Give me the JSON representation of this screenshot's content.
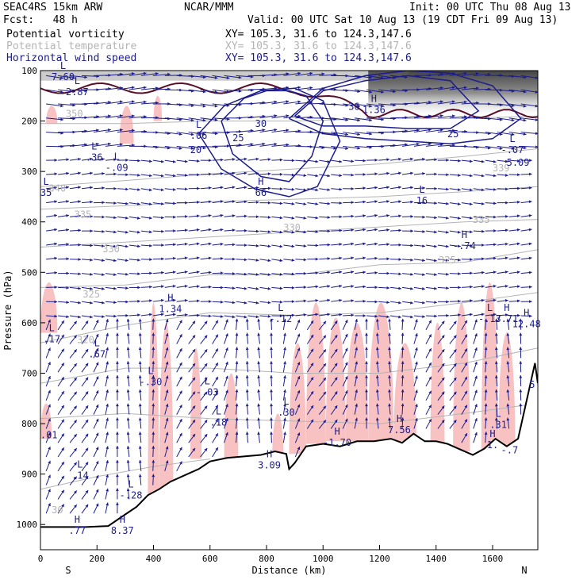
{
  "header": {
    "model": "SEAC4RS 15km ARW",
    "org": "NCAR/MMM",
    "init": "Init: 00 UTC Thu 08 Aug 13",
    "fcst": "Fcst:   48 h",
    "valid": "Valid: 00 UTC Sat 10 Aug 13 (19 CDT Fri 09 Aug 13)"
  },
  "fields": [
    {
      "name": "Potential vorticity",
      "xy": "XY= 105.3, 31.6 to 124.3,147.6",
      "color": "#000000"
    },
    {
      "name": "Potential temperature",
      "xy": "XY= 105.3, 31.6 to 124.3,147.6",
      "color": "#b4b4b4"
    },
    {
      "name": "Horizontal wind speed",
      "xy": "XY= 105.3, 31.6 to 124.3,147.6",
      "color": "#1c1c8c"
    }
  ],
  "chart_data": {
    "type": "cross-section",
    "xlabel": "Distance (km)",
    "ylabel": "Pressure (hPa)",
    "xlim": [
      0,
      1760
    ],
    "ylim": [
      1050,
      100
    ],
    "x_ticks": [
      0,
      200,
      400,
      600,
      800,
      1000,
      1200,
      1400,
      1600
    ],
    "x_tick_labels": [
      "0",
      "200",
      "400",
      "600",
      "800",
      "1000",
      "1200",
      "1400",
      "1600"
    ],
    "y_ticks": [
      100,
      200,
      300,
      400,
      500,
      600,
      700,
      800,
      900,
      1000
    ],
    "y_tick_labels": [
      "100",
      "200",
      "300",
      "400",
      "500",
      "600",
      "700",
      "800",
      "900",
      "1000"
    ],
    "end_labels": {
      "left": "S",
      "right": "N"
    },
    "colors": {
      "pv_fill": "#f9c2c2",
      "pv_contour": "#5a0f28",
      "theta": "#b4b4b4",
      "wind": "#1c1c8c",
      "terrain": "#000000"
    },
    "terrain": {
      "x": [
        0,
        80,
        160,
        240,
        300,
        340,
        380,
        420,
        460,
        500,
        560,
        600,
        660,
        720,
        780,
        830,
        870,
        880,
        900,
        940,
        1000,
        1060,
        1120,
        1180,
        1240,
        1280,
        1320,
        1360,
        1400,
        1440,
        1480,
        1530,
        1570,
        1610,
        1650,
        1690,
        1720,
        1750,
        1760
      ],
      "p": [
        1005,
        1005,
        1005,
        1003,
        980,
        965,
        942,
        930,
        915,
        905,
        890,
        875,
        868,
        865,
        862,
        855,
        860,
        890,
        878,
        845,
        840,
        845,
        835,
        835,
        830,
        838,
        820,
        835,
        835,
        840,
        850,
        862,
        850,
        830,
        845,
        830,
        755,
        680,
        720
      ]
    },
    "theta_contours": [
      {
        "level": 350,
        "x": [
          0,
          300,
          600,
          900,
          1200,
          1500,
          1760
        ],
        "p": [
          205,
          205,
          200,
          200,
          195,
          195,
          190
        ]
      },
      {
        "level": 340,
        "x": [
          0,
          300,
          600,
          900,
          1200,
          1500,
          1760
        ],
        "p": [
          330,
          318,
          305,
          295,
          285,
          270,
          255
        ]
      },
      {
        "level": 335,
        "x": [
          0,
          300,
          600,
          900,
          1200,
          1500,
          1760
        ],
        "p": [
          375,
          368,
          360,
          355,
          350,
          340,
          330
        ]
      },
      {
        "level": 330,
        "x": [
          0,
          300,
          600,
          900,
          1200,
          1500,
          1760
        ],
        "p": [
          450,
          440,
          430,
          420,
          410,
          400,
          395
        ]
      },
      {
        "level": 325,
        "x": [
          0,
          300,
          600,
          900,
          1200,
          1500,
          1760
        ],
        "p": [
          530,
          525,
          505,
          505,
          485,
          480,
          455
        ]
      },
      {
        "level": 320,
        "x": [
          0,
          300,
          600,
          900,
          1200,
          1500,
          1760
        ],
        "p": [
          640,
          605,
          580,
          585,
          580,
          560,
          540
        ]
      },
      {
        "level": 315,
        "x": [
          0,
          300,
          600,
          900,
          1200,
          1500,
          1760
        ],
        "p": [
          720,
          690,
          690,
          700,
          700,
          680,
          650
        ]
      },
      {
        "level": 310,
        "x": [
          0,
          300,
          600,
          900,
          1200,
          1500,
          1760
        ],
        "p": [
          790,
          780,
          790,
          795,
          800,
          780,
          760
        ]
      },
      {
        "level": 305,
        "x": [
          0,
          200,
          400,
          600
        ],
        "p": [
          930,
          905,
          885,
          870
        ]
      }
    ],
    "theta_labels": [
      {
        "text": "350",
        "x": 120,
        "p": 192
      },
      {
        "text": "340",
        "x": 60,
        "p": 340
      },
      {
        "text": "335",
        "x": 150,
        "p": 392
      },
      {
        "text": "330",
        "x": 250,
        "p": 460
      },
      {
        "text": "325",
        "x": 180,
        "p": 550
      },
      {
        "text": "320",
        "x": 160,
        "p": 640
      },
      {
        "text": "330",
        "x": 890,
        "p": 418
      },
      {
        "text": "325",
        "x": 1440,
        "p": 482
      },
      {
        "text": "335",
        "x": 1560,
        "p": 402
      },
      {
        "text": "339",
        "x": 1630,
        "p": 300
      },
      {
        "text": "30",
        "x": 60,
        "p": 978
      }
    ],
    "wind_speed_contours": [
      {
        "level": 25,
        "x": [
          880,
          1000,
          1150,
          1300,
          1450,
          1600,
          1700,
          1600,
          1450,
          1300,
          1150,
          1000,
          880
        ],
        "p": [
          195,
          135,
          110,
          100,
          105,
          130,
          195,
          235,
          245,
          240,
          235,
          225,
          195
        ]
      },
      {
        "level": 30,
        "x": [
          900,
          1000,
          1150,
          1300,
          1450,
          1550,
          1450,
          1300,
          1150,
          1000,
          900
        ],
        "p": [
          190,
          140,
          120,
          110,
          120,
          180,
          215,
          215,
          210,
          210,
          190
        ]
      },
      {
        "level": 25,
        "x": [
          560,
          650,
          780,
          900,
          1000,
          1060,
          980,
          880,
          760,
          640,
          560
        ],
        "p": [
          225,
          170,
          140,
          135,
          160,
          240,
          330,
          350,
          335,
          295,
          225
        ]
      },
      {
        "level": 30,
        "x": [
          640,
          720,
          800,
          880,
          940,
          1000,
          960,
          880,
          780,
          680,
          640
        ],
        "p": [
          200,
          155,
          140,
          140,
          150,
          200,
          270,
          320,
          310,
          265,
          200
        ]
      }
    ],
    "wind_speed_labels": [
      {
        "text": "25",
        "x": 700,
        "p": 240
      },
      {
        "text": "30",
        "x": 780,
        "p": 212
      },
      {
        "text": "25",
        "x": 1460,
        "p": 232
      },
      {
        "text": "36",
        "x": 1110,
        "p": 178
      }
    ],
    "extrema": [
      {
        "type": "L",
        "value": "7.60",
        "x": 80,
        "p": 100
      },
      {
        "type": "L",
        "value": "2.87",
        "x": 130,
        "p": 130
      },
      {
        "type": "L",
        "value": ".36",
        "x": 190,
        "p": 260
      },
      {
        "type": "L",
        "value": "-.09",
        "x": 270,
        "p": 280
      },
      {
        "type": "L",
        "value": ".06",
        "x": 560,
        "p": 216
      },
      {
        "type": "",
        "value": "20",
        "x": 550,
        "p": 245
      },
      {
        "type": "L",
        "value": "35",
        "x": 20,
        "p": 330
      },
      {
        "type": "H",
        "value": "66",
        "x": 780,
        "p": 330
      },
      {
        "type": "H",
        "value": "1.36",
        "x": 1180,
        "p": 165
      },
      {
        "type": "L",
        "value": "16",
        "x": 1350,
        "p": 345
      },
      {
        "type": "L",
        "value": "-.07",
        "x": 1670,
        "p": 245
      },
      {
        "type": "",
        "value": "5.09",
        "x": 1690,
        "p": 270
      },
      {
        "type": "H",
        "value": "-.74",
        "x": 1500,
        "p": 435
      },
      {
        "type": "H",
        "value": "1.34",
        "x": 460,
        "p": 560
      },
      {
        "type": "L",
        "value": "-.12",
        "x": 850,
        "p": 580
      },
      {
        "type": "L",
        "value": ".17",
        "x": 40,
        "p": 620
      },
      {
        "type": "L",
        "value": ".67",
        "x": 200,
        "p": 650
      },
      {
        "type": "L",
        "value": "-.30",
        "x": 390,
        "p": 705
      },
      {
        "type": "L",
        "value": "-.03",
        "x": 590,
        "p": 725
      },
      {
        "type": "L",
        "value": ".30",
        "x": 870,
        "p": 765
      },
      {
        "type": "L",
        "value": ".18",
        "x": 630,
        "p": 785
      },
      {
        "type": "H",
        "value": "7.56",
        "x": 1270,
        "p": 800
      },
      {
        "type": "H",
        "value": "-1.70",
        "x": 1050,
        "p": 825
      },
      {
        "type": "",
        "value": ".01",
        "x": 30,
        "p": 810
      },
      {
        "type": "H",
        "value": "3.09",
        "x": 810,
        "p": 870
      },
      {
        "type": "L",
        "value": ".14",
        "x": 140,
        "p": 890
      },
      {
        "type": "L",
        "value": "-.28",
        "x": 320,
        "p": 930
      },
      {
        "type": "H",
        "value": ".77",
        "x": 130,
        "p": 1000
      },
      {
        "type": "H",
        "value": "8.37",
        "x": 290,
        "p": 1000
      },
      {
        "type": "L",
        "value": "-.17",
        "x": 1590,
        "p": 580
      },
      {
        "type": "H",
        "value": "3.71",
        "x": 1650,
        "p": 580
      },
      {
        "type": "H",
        "value": "12.48",
        "x": 1720,
        "p": 590
      },
      {
        "type": "L",
        "value": ".31",
        "x": 1620,
        "p": 790
      },
      {
        "type": "H",
        "value": "1.",
        "x": 1600,
        "p": 830
      },
      {
        "type": "",
        "value": "-.7",
        "x": 1660,
        "p": 840
      },
      {
        "type": "",
        "value": "5",
        "x": 1740,
        "p": 710
      }
    ]
  }
}
